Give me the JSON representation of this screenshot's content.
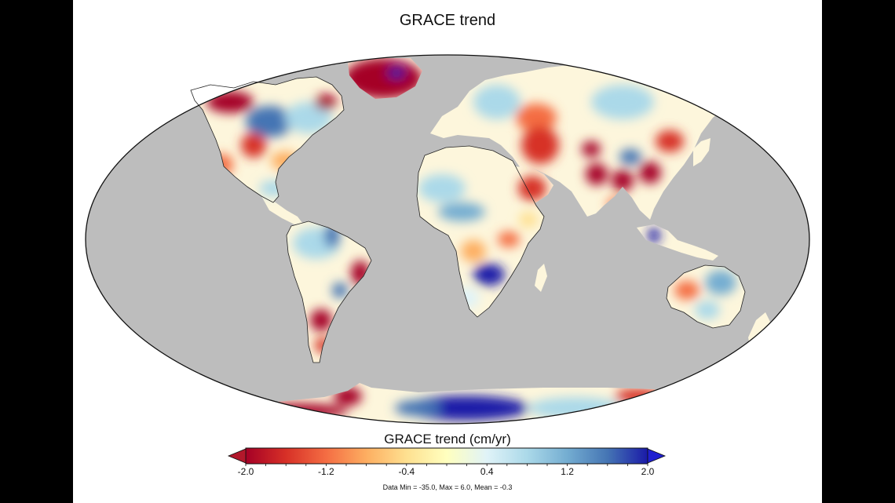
{
  "title": "GRACE trend",
  "colorbar": {
    "label": "GRACE trend (cm/yr)",
    "min": -2.0,
    "max": 2.0,
    "ticks": [
      "-2.0",
      "-1.2",
      "-0.4",
      "0.4",
      "1.2",
      "2.0"
    ],
    "colors": [
      "#a50026",
      "#d73027",
      "#f46d43",
      "#fdae61",
      "#fee090",
      "#ffffbf",
      "#e0f3f8",
      "#abd9e9",
      "#74add1",
      "#4575b4",
      "#1a1aa8"
    ],
    "low_arrow_color": "#b2182b",
    "high_arrow_color": "#2020d0"
  },
  "stats": "Data Min = -35.0, Max = 6.0, Mean = -0.3",
  "map_colors": {
    "ocean": "#bdbdbd",
    "land": "#fdf6dc",
    "outline": "#222222"
  }
}
